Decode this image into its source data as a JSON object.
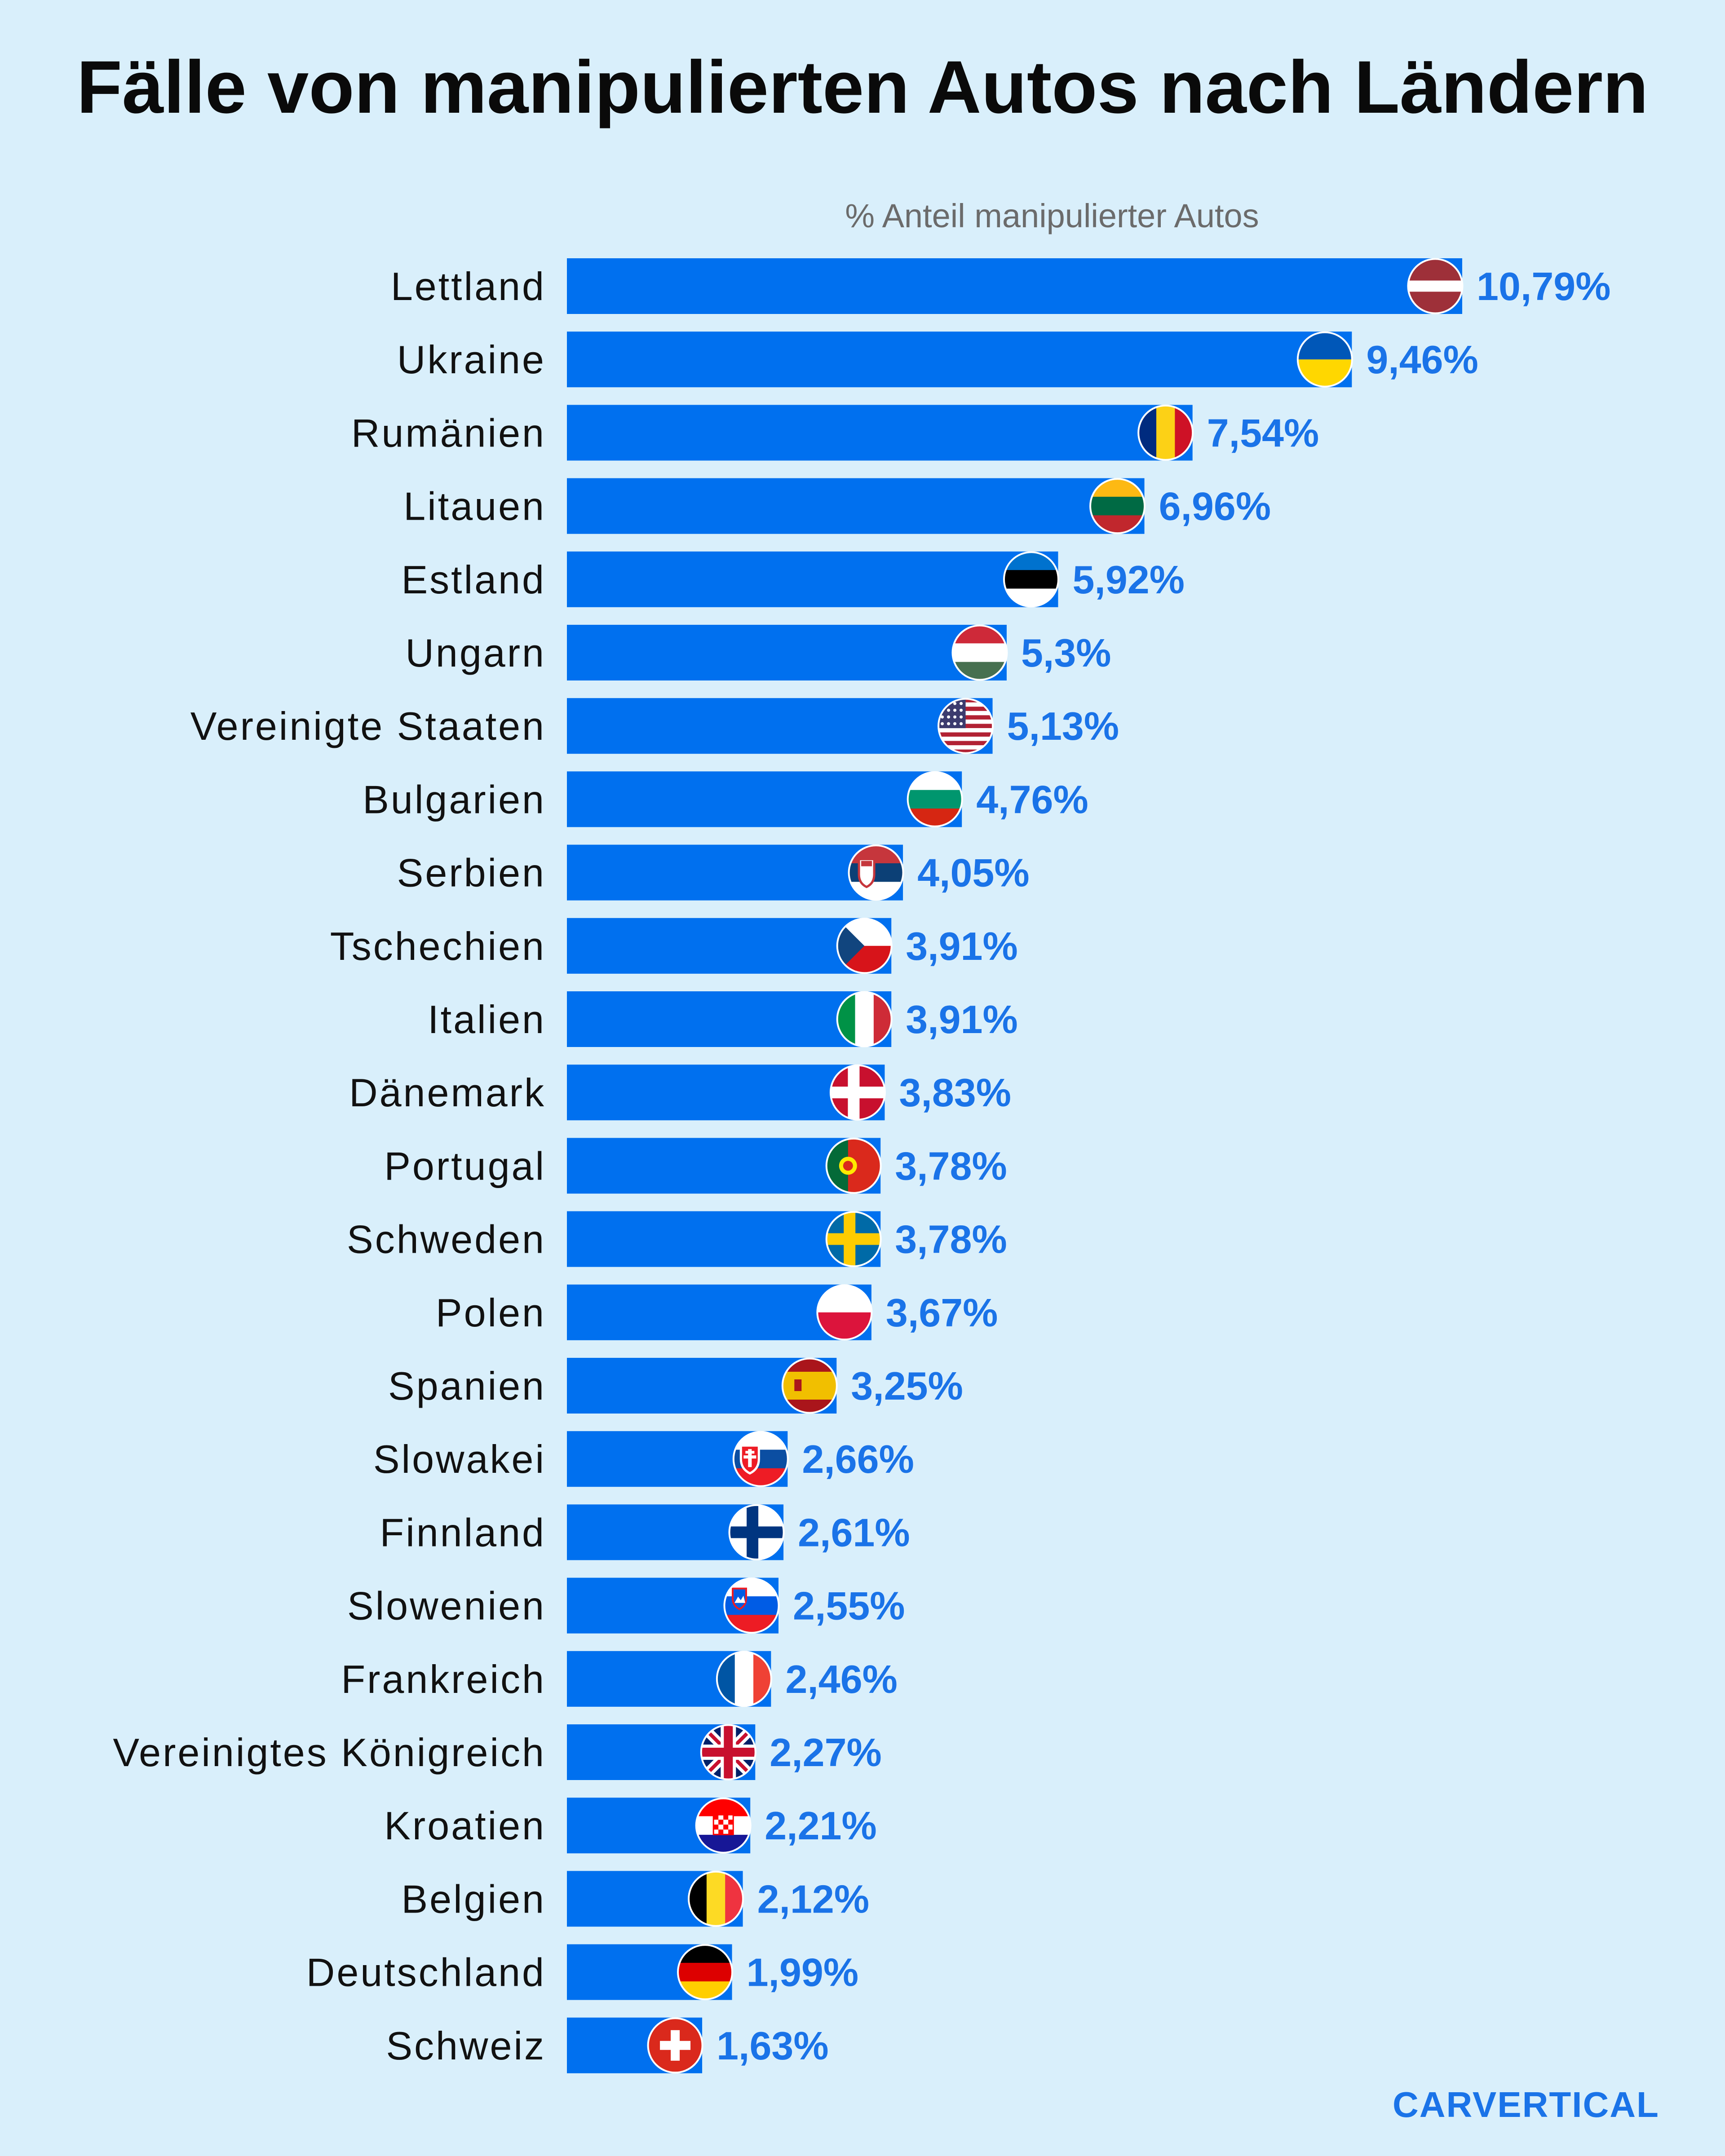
{
  "title": "Fälle von manipulierten Autos nach Ländern",
  "brand": {
    "name": "CARVERTICAL",
    "color": "#1a73e8"
  },
  "colors": {
    "bar": "#0070ef",
    "value_text": "#1a73e8",
    "background": "#d9effb"
  },
  "chart_data": {
    "type": "bar",
    "orientation": "horizontal",
    "title": "Fälle von manipulierten Autos nach Ländern",
    "xlabel": "% Anteil manipulierter Autos",
    "ylabel": "",
    "xlim": [
      0,
      12
    ],
    "grid": false,
    "categories": [
      "Lettland",
      "Ukraine",
      "Rumänien",
      "Litauen",
      "Estland",
      "Ungarn",
      "Vereinigte Staaten",
      "Bulgarien",
      "Serbien",
      "Tschechien",
      "Italien",
      "Dänemark",
      "Portugal",
      "Schweden",
      "Polen",
      "Spanien",
      "Slowakei",
      "Finnland",
      "Slowenien",
      "Frankreich",
      "Vereinigtes Königreich",
      "Kroatien",
      "Belgien",
      "Deutschland",
      "Schweiz"
    ],
    "values": [
      10.79,
      9.46,
      7.54,
      6.96,
      5.92,
      5.3,
      5.13,
      4.76,
      4.05,
      3.91,
      3.91,
      3.83,
      3.78,
      3.78,
      3.67,
      3.25,
      2.66,
      2.61,
      2.55,
      2.46,
      2.27,
      2.21,
      2.12,
      1.99,
      1.63
    ],
    "value_labels": [
      "10,79%",
      "9,46%",
      "7,54%",
      "6,96%",
      "5,92%",
      "5,3%",
      "5,13%",
      "4,76%",
      "4,05%",
      "3,91%",
      "3,91%",
      "3,83%",
      "3,78%",
      "3,78%",
      "3,67%",
      "3,25%",
      "2,66%",
      "2,61%",
      "2,55%",
      "2,46%",
      "2,27%",
      "2,21%",
      "2,12%",
      "1,99%",
      "1,63%"
    ],
    "flags": [
      "flag-latvia-icon",
      "flag-ukraine-icon",
      "flag-romania-icon",
      "flag-lithuania-icon",
      "flag-estonia-icon",
      "flag-hungary-icon",
      "flag-usa-icon",
      "flag-bulgaria-icon",
      "flag-serbia-icon",
      "flag-czechia-icon",
      "flag-italy-icon",
      "flag-denmark-icon",
      "flag-portugal-icon",
      "flag-sweden-icon",
      "flag-poland-icon",
      "flag-spain-icon",
      "flag-slovakia-icon",
      "flag-finland-icon",
      "flag-slovenia-icon",
      "flag-france-icon",
      "flag-uk-icon",
      "flag-croatia-icon",
      "flag-belgium-icon",
      "flag-germany-icon",
      "flag-switzerland-icon"
    ]
  }
}
